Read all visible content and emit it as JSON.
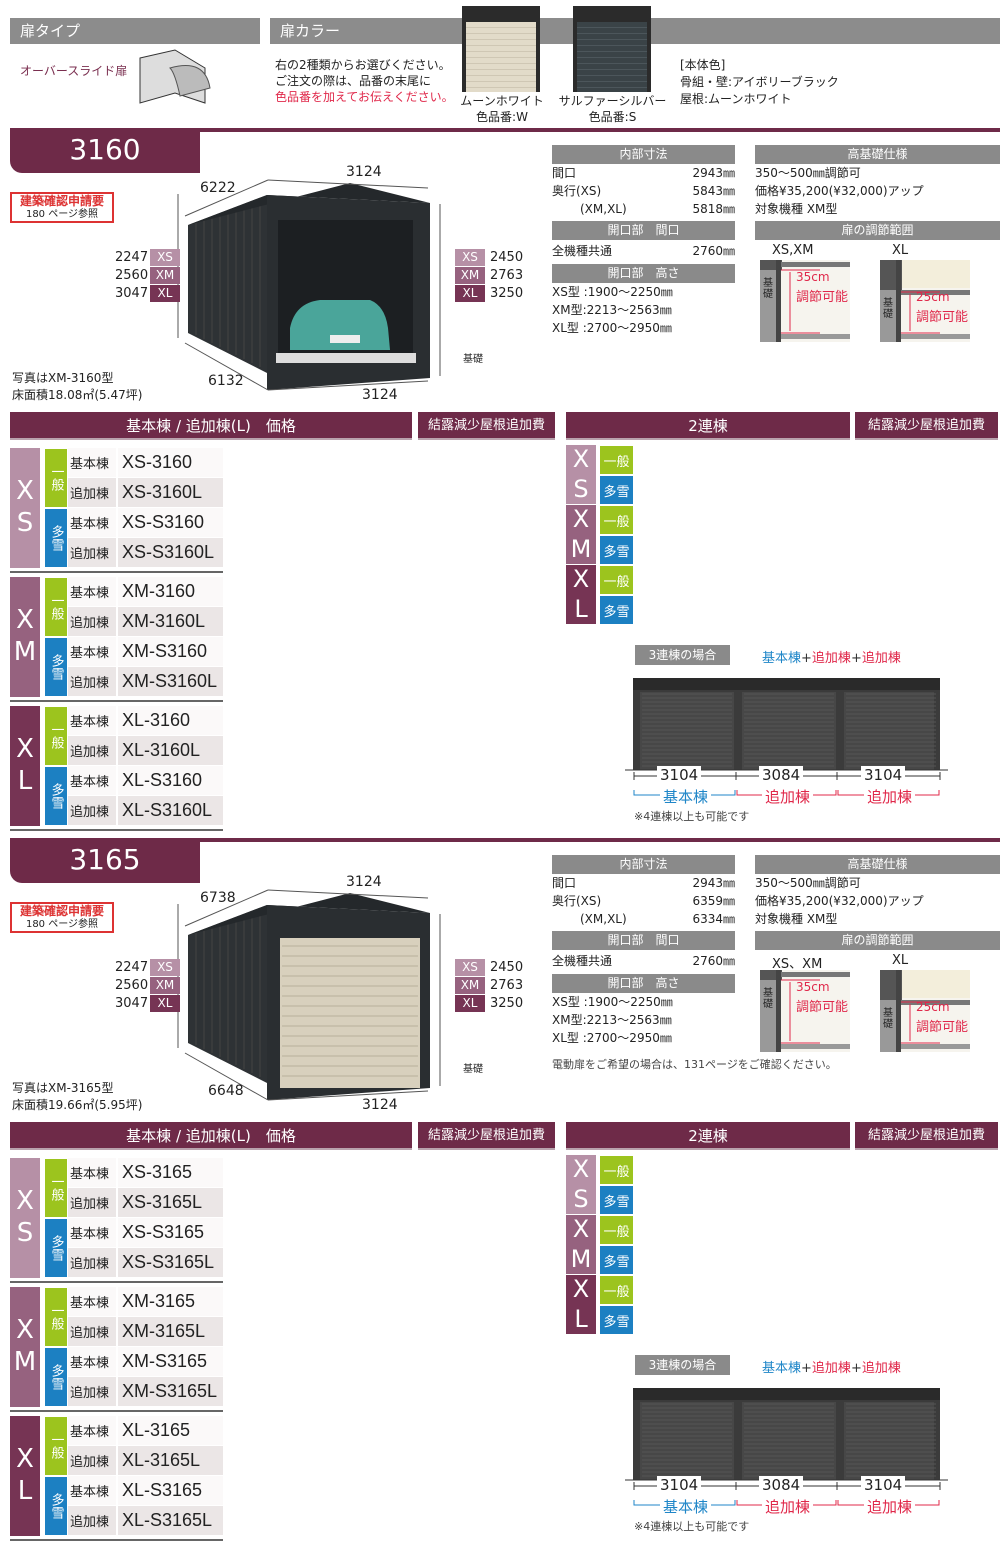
{
  "colors": {
    "maroon": "#6e2a48",
    "xs": "#b690a6",
    "xm": "#96627f",
    "xl": "#763454",
    "general": "#9cc41e",
    "snow": "#1c80c2",
    "red": "#e0284a",
    "blue": "#1f86c8"
  },
  "door_type": {
    "title": "扉タイプ",
    "name": "オーバースライド扉"
  },
  "door_color": {
    "title": "扉カラー",
    "line1": "右の2種類からお選びください。",
    "line2": "ご注文の際は、品番の末尾に",
    "line3": "色品番を加えてお伝えください。",
    "options": [
      {
        "name": "ムーンホワイト",
        "code": "色品番:W",
        "color": "#e2dbc9"
      },
      {
        "name": "サルファーシルバー",
        "code": "色品番:S",
        "color": "#3a4347"
      }
    ],
    "body_title": "[本体色]",
    "body_frame": "骨組・壁:アイボリーブラック",
    "body_roof": "屋根:ムーンホワイト"
  },
  "sections": [
    {
      "model": "3160",
      "door": "open-with-car",
      "permit": {
        "title": "建築確認申請要",
        "ref": "180 ページ参照"
      },
      "dims": {
        "depth_top": "6222",
        "width_top": "3124",
        "depth_bottom": "6132",
        "width_bottom": "3124",
        "foundation": "基礎",
        "left": [
          {
            "value": "2247",
            "size": "XS"
          },
          {
            "value": "2560",
            "size": "XM"
          },
          {
            "value": "3047",
            "size": "XL"
          }
        ],
        "right": [
          {
            "value": "2450",
            "size": "XS"
          },
          {
            "value": "2763",
            "size": "XM"
          },
          {
            "value": "3250",
            "size": "XL"
          }
        ]
      },
      "photo_note": "写真はXM-3160型",
      "floor_area": "床面積18.08㎡(5.47坪)",
      "inner": {
        "title": "内部寸法",
        "rows": [
          {
            "label": "間口",
            "value": "2943㎜"
          },
          {
            "label": "奥行(XS)",
            "value": "5843㎜"
          },
          {
            "label": "(XM,XL)",
            "value": "5818㎜"
          }
        ]
      },
      "opening_width": {
        "title": "開口部　間口",
        "label": "全機種共通",
        "value": "2760㎜"
      },
      "opening_height": {
        "title": "開口部　高さ",
        "rows": [
          "XS型 :1900〜2250㎜",
          "XM型:2213〜2563㎜",
          "XL型 :2700〜2950㎜"
        ]
      },
      "high_foundation": {
        "title": "高基礎仕様",
        "rows": [
          "350〜500㎜調節可",
          "価格¥35,200(¥32,000)アップ",
          "対象機種 XM型"
        ]
      },
      "door_adjust": {
        "title": "扉の調節範囲",
        "items": [
          {
            "label": "XS,XM",
            "range": "35cm",
            "text": "調節可能",
            "foundation": "基礎"
          },
          {
            "label": "XL",
            "range": "25cm",
            "text": "調節可能",
            "foundation": "基礎"
          }
        ]
      },
      "note": "",
      "price": {
        "title": "基本棟 / 追加棟(L)　価格",
        "extra": "結露減少屋根追加費",
        "groups": [
          {
            "size": "XS",
            "subs": [
              {
                "type": "一般",
                "rows": [
                  {
                    "label": "基本棟",
                    "model": "XS-3160"
                  },
                  {
                    "label": "追加棟",
                    "model": "XS-3160L"
                  }
                ]
              },
              {
                "type": "多雪",
                "rows": [
                  {
                    "label": "基本棟",
                    "model": "XS-S3160"
                  },
                  {
                    "label": "追加棟",
                    "model": "XS-S3160L"
                  }
                ]
              }
            ]
          },
          {
            "size": "XM",
            "subs": [
              {
                "type": "一般",
                "rows": [
                  {
                    "label": "基本棟",
                    "model": "XM-3160"
                  },
                  {
                    "label": "追加棟",
                    "model": "XM-3160L"
                  }
                ]
              },
              {
                "type": "多雪",
                "rows": [
                  {
                    "label": "基本棟",
                    "model": "XM-S3160"
                  },
                  {
                    "label": "追加棟",
                    "model": "XM-S3160L"
                  }
                ]
              }
            ]
          },
          {
            "size": "XL",
            "subs": [
              {
                "type": "一般",
                "rows": [
                  {
                    "label": "基本棟",
                    "model": "XL-3160"
                  },
                  {
                    "label": "追加棟",
                    "model": "XL-3160L"
                  }
                ]
              },
              {
                "type": "多雪",
                "rows": [
                  {
                    "label": "基本棟",
                    "model": "XL-S3160"
                  },
                  {
                    "label": "追加棟",
                    "model": "XL-S3160L"
                  }
                ]
              }
            ]
          }
        ]
      },
      "twin": {
        "title": "2連棟",
        "extra": "結露減少屋根追加費",
        "groups": [
          {
            "size": "XS",
            "subs": [
              "一般",
              "多雪"
            ]
          },
          {
            "size": "XM",
            "subs": [
              "一般",
              "多雪"
            ]
          },
          {
            "size": "XL",
            "subs": [
              "一般",
              "多雪"
            ]
          }
        ]
      },
      "triple": {
        "title": "3連棟の場合",
        "formula": [
          "基本棟",
          "+",
          "追加棟",
          "+",
          "追加棟"
        ],
        "widths": [
          "3104",
          "3084",
          "3104"
        ],
        "labels": [
          "基本棟",
          "追加棟",
          "追加棟"
        ],
        "note": "※4連棟以上も可能です"
      }
    },
    {
      "model": "3165",
      "door": "closed-moon-white",
      "permit": {
        "title": "建築確認申請要",
        "ref": "180 ページ参照"
      },
      "dims": {
        "depth_top": "6738",
        "width_top": "3124",
        "depth_bottom": "6648",
        "width_bottom": "3124",
        "foundation": "基礎",
        "left": [
          {
            "value": "2247",
            "size": "XS"
          },
          {
            "value": "2560",
            "size": "XM"
          },
          {
            "value": "3047",
            "size": "XL"
          }
        ],
        "right": [
          {
            "value": "2450",
            "size": "XS"
          },
          {
            "value": "2763",
            "size": "XM"
          },
          {
            "value": "3250",
            "size": "XL"
          }
        ]
      },
      "photo_note": "写真はXM-3165型",
      "floor_area": "床面積19.66㎡(5.95坪)",
      "inner": {
        "title": "内部寸法",
        "rows": [
          {
            "label": "間口",
            "value": "2943㎜"
          },
          {
            "label": "奥行(XS)",
            "value": "6359㎜"
          },
          {
            "label": "(XM,XL)",
            "value": "6334㎜"
          }
        ]
      },
      "opening_width": {
        "title": "開口部　間口",
        "label": "全機種共通",
        "value": "2760㎜"
      },
      "opening_height": {
        "title": "開口部　高さ",
        "rows": [
          "XS型 :1900〜2250㎜",
          "XM型:2213〜2563㎜",
          "XL型 :2700〜2950㎜"
        ]
      },
      "high_foundation": {
        "title": "高基礎仕様",
        "rows": [
          "350〜500㎜調節可",
          "価格¥35,200(¥32,000)アップ",
          "対象機種 XM型"
        ]
      },
      "door_adjust": {
        "title": "扉の調節範囲",
        "items": [
          {
            "label": "XS、XM",
            "range": "35cm",
            "text": "調節可能",
            "foundation": "基礎"
          },
          {
            "label": "XL",
            "range": "25cm",
            "text": "調節可能",
            "foundation": "基礎"
          }
        ]
      },
      "note": "電動扉をご希望の場合は、131ページをご確認ください。",
      "price": {
        "title": "基本棟 / 追加棟(L)　価格",
        "extra": "結露減少屋根追加費",
        "groups": [
          {
            "size": "XS",
            "subs": [
              {
                "type": "一般",
                "rows": [
                  {
                    "label": "基本棟",
                    "model": "XS-3165"
                  },
                  {
                    "label": "追加棟",
                    "model": "XS-3165L"
                  }
                ]
              },
              {
                "type": "多雪",
                "rows": [
                  {
                    "label": "基本棟",
                    "model": "XS-S3165"
                  },
                  {
                    "label": "追加棟",
                    "model": "XS-S3165L"
                  }
                ]
              }
            ]
          },
          {
            "size": "XM",
            "subs": [
              {
                "type": "一般",
                "rows": [
                  {
                    "label": "基本棟",
                    "model": "XM-3165"
                  },
                  {
                    "label": "追加棟",
                    "model": "XM-3165L"
                  }
                ]
              },
              {
                "type": "多雪",
                "rows": [
                  {
                    "label": "基本棟",
                    "model": "XM-S3165"
                  },
                  {
                    "label": "追加棟",
                    "model": "XM-S3165L"
                  }
                ]
              }
            ]
          },
          {
            "size": "XL",
            "subs": [
              {
                "type": "一般",
                "rows": [
                  {
                    "label": "基本棟",
                    "model": "XL-3165"
                  },
                  {
                    "label": "追加棟",
                    "model": "XL-3165L"
                  }
                ]
              },
              {
                "type": "多雪",
                "rows": [
                  {
                    "label": "基本棟",
                    "model": "XL-S3165"
                  },
                  {
                    "label": "追加棟",
                    "model": "XL-S3165L"
                  }
                ]
              }
            ]
          }
        ]
      },
      "twin": {
        "title": "2連棟",
        "extra": "結露減少屋根追加費",
        "groups": [
          {
            "size": "XS",
            "subs": [
              "一般",
              "多雪"
            ]
          },
          {
            "size": "XM",
            "subs": [
              "一般",
              "多雪"
            ]
          },
          {
            "size": "XL",
            "subs": [
              "一般",
              "多雪"
            ]
          }
        ]
      },
      "triple": {
        "title": "3連棟の場合",
        "formula": [
          "基本棟",
          "+",
          "追加棟",
          "+",
          "追加棟"
        ],
        "widths": [
          "3104",
          "3084",
          "3104"
        ],
        "labels": [
          "基本棟",
          "追加棟",
          "追加棟"
        ],
        "note": "※4連棟以上も可能です"
      }
    }
  ]
}
